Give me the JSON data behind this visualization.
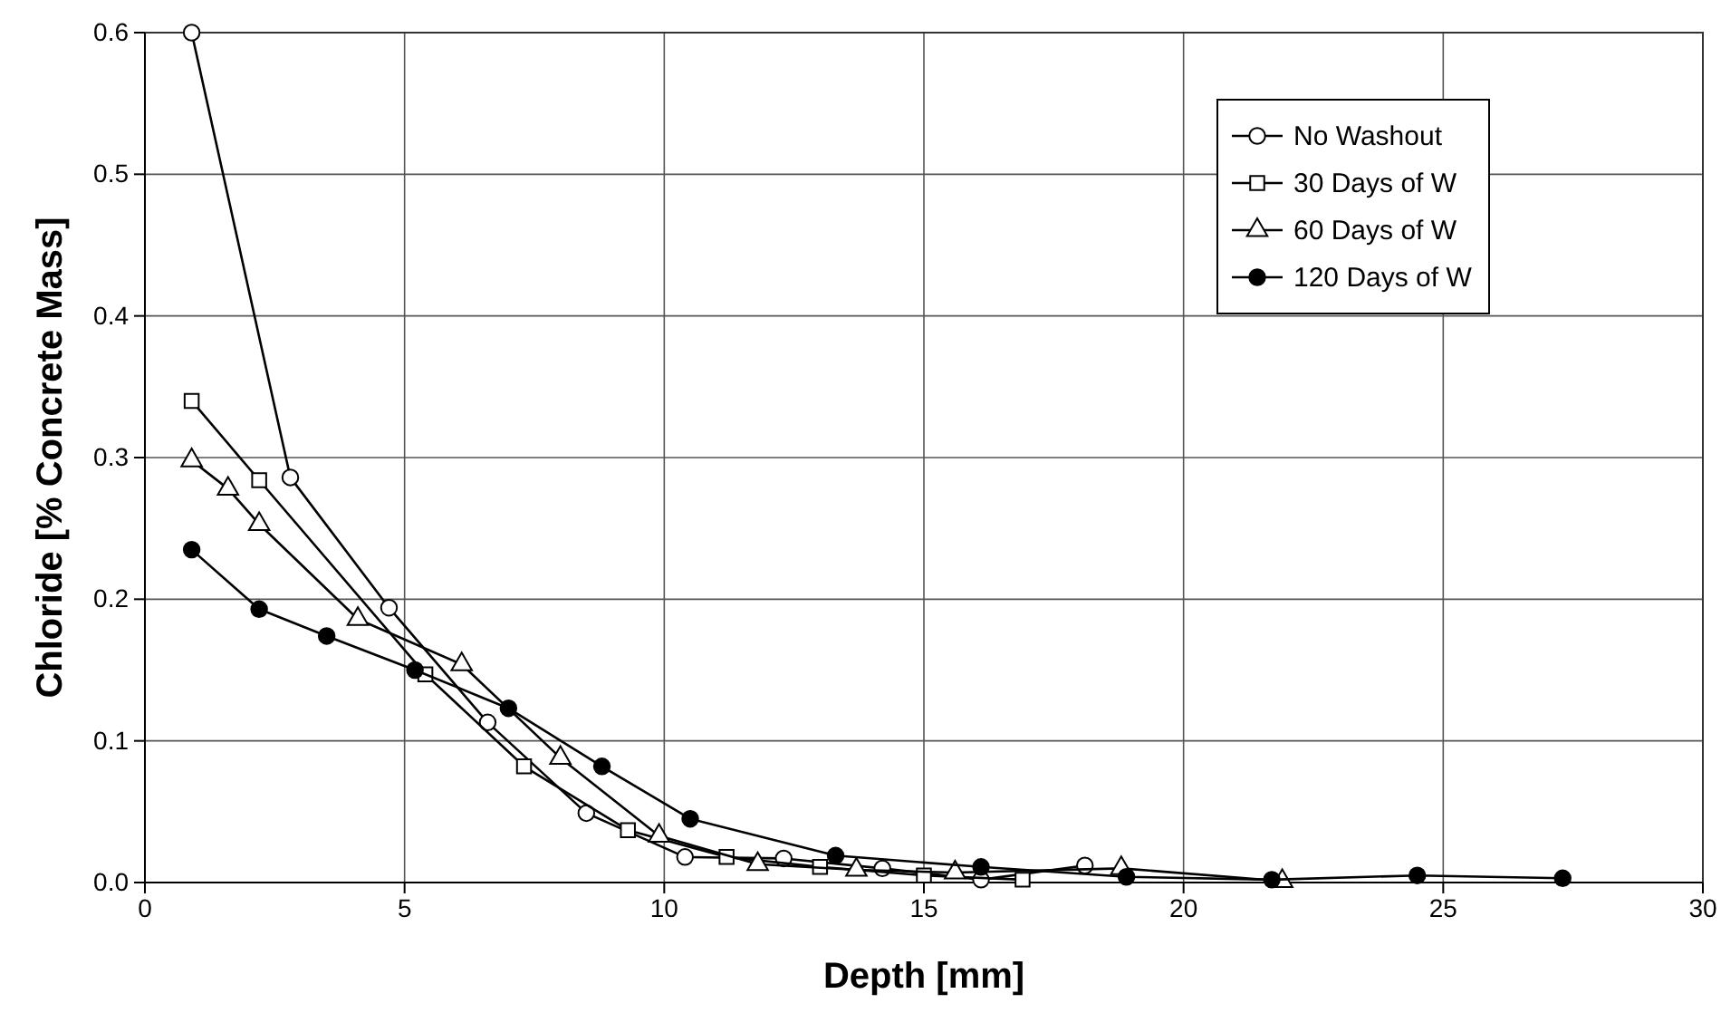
{
  "chart_data": {
    "type": "line",
    "xlabel": "Depth [mm]",
    "ylabel": "Chloride [% Concrete Mass]",
    "xlim": [
      0,
      30
    ],
    "xticks": [
      0,
      5,
      10,
      15,
      20,
      25,
      30
    ],
    "ylim": [
      0,
      0.6
    ],
    "yticks": [
      {
        "value": 0,
        "label": "0.0"
      },
      0.1,
      0.2,
      0.3,
      0.4,
      0.5,
      0.6
    ],
    "grid": true,
    "legend": "top right",
    "line_style": "solid",
    "series": [
      {
        "name": "No Washout",
        "color": "#000000",
        "marker": "circle",
        "x": [
          0.9,
          2.8,
          4.7,
          6.6,
          8.5,
          10.4,
          12.3,
          14.2,
          16.1,
          18.1
        ],
        "values": [
          0.6,
          0.286,
          0.194,
          0.113,
          0.049,
          0.018,
          0.017,
          0.01,
          0.002,
          0.012
        ]
      },
      {
        "name": "30 Days of W",
        "color": "#000000",
        "marker": "square",
        "x": [
          0.9,
          2.2,
          5.4,
          7.3,
          9.3,
          11.2,
          13.0,
          15.0,
          16.9
        ],
        "values": [
          0.34,
          0.284,
          0.147,
          0.082,
          0.037,
          0.018,
          0.011,
          0.005,
          0.002
        ]
      },
      {
        "name": "60 Days of W",
        "color": "#000000",
        "marker": "triangle",
        "x": [
          0.9,
          1.6,
          2.2,
          4.1,
          6.1,
          8.0,
          9.9,
          11.8,
          13.7,
          15.6,
          18.8,
          21.9
        ],
        "values": [
          0.298,
          0.278,
          0.253,
          0.186,
          0.154,
          0.088,
          0.033,
          0.013,
          0.009,
          0.007,
          0.01,
          0.001
        ]
      },
      {
        "name": "120 Days of W",
        "color": "#000000",
        "marker": "circle",
        "x": [
          0.9,
          2.2,
          3.5,
          5.2,
          7.0,
          8.8,
          10.5,
          13.3,
          16.1,
          18.9,
          21.7,
          24.5,
          27.3
        ],
        "values": [
          0.235,
          0.193,
          0.174,
          0.15,
          0.123,
          0.082,
          0.045,
          0.019,
          0.011,
          0.004,
          0.002,
          0.005,
          0.003
        ]
      }
    ]
  }
}
